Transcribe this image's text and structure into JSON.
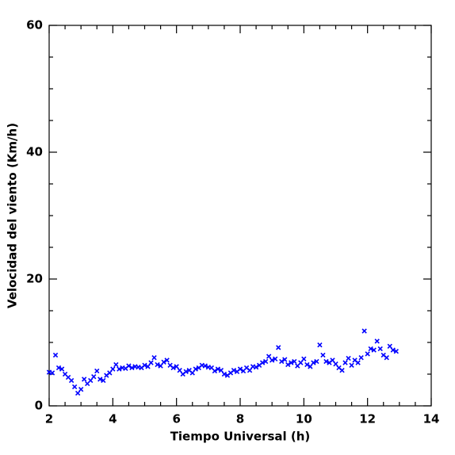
{
  "chart_data": {
    "type": "scatter",
    "x_label": "Tiempo Universal (h)",
    "y_label": "Velocidad del viento (Km/h)",
    "xlim": [
      2,
      14
    ],
    "xticks": [
      2,
      4,
      6,
      8,
      10,
      12,
      14
    ],
    "ylim": [
      0,
      60
    ],
    "yticks": [
      0,
      20,
      40,
      60
    ],
    "grid": false,
    "series": [
      {
        "color": "#0000ff",
        "x": [
          2.0,
          2.1,
          2.2,
          2.3,
          2.4,
          2.5,
          2.6,
          2.7,
          2.8,
          2.9,
          3.0,
          3.1,
          3.2,
          3.3,
          3.4,
          3.5,
          3.6,
          3.7,
          3.8,
          3.9,
          4.0,
          4.1,
          4.2,
          4.3,
          4.4,
          4.5,
          4.6,
          4.7,
          4.8,
          4.9,
          5.0,
          5.1,
          5.2,
          5.3,
          5.4,
          5.5,
          5.6,
          5.7,
          5.8,
          5.9,
          6.0,
          6.1,
          6.2,
          6.3,
          6.4,
          6.5,
          6.6,
          6.7,
          6.8,
          6.9,
          7.0,
          7.1,
          7.2,
          7.3,
          7.4,
          7.5,
          7.6,
          7.7,
          7.8,
          7.9,
          8.0,
          8.1,
          8.2,
          8.3,
          8.4,
          8.5,
          8.6,
          8.7,
          8.8,
          8.9,
          9.0,
          9.1,
          9.2,
          9.3,
          9.4,
          9.5,
          9.6,
          9.7,
          9.8,
          9.9,
          10.0,
          10.1,
          10.2,
          10.3,
          10.4,
          10.5,
          10.6,
          10.7,
          10.8,
          10.9,
          11.0,
          11.1,
          11.2,
          11.3,
          11.4,
          11.5,
          11.6,
          11.7,
          11.8,
          11.9,
          12.0,
          12.1,
          12.2,
          12.3,
          12.4,
          12.5,
          12.6,
          12.7,
          12.8,
          12.9
        ],
        "values": [
          5.3,
          5.2,
          8.0,
          6.0,
          5.8,
          5.0,
          4.5,
          4.0,
          3.0,
          2.0,
          2.6,
          4.2,
          3.5,
          4.0,
          4.6,
          5.5,
          4.2,
          4.0,
          4.8,
          5.2,
          5.8,
          6.5,
          5.8,
          6.0,
          5.9,
          6.3,
          6.0,
          6.2,
          6.1,
          6.0,
          6.4,
          6.2,
          6.8,
          7.6,
          6.5,
          6.3,
          6.9,
          7.2,
          6.4,
          6.0,
          6.2,
          5.6,
          5.0,
          5.4,
          5.6,
          5.2,
          5.8,
          6.0,
          6.4,
          6.3,
          6.1,
          6.0,
          5.5,
          5.8,
          5.6,
          5.0,
          4.8,
          5.2,
          5.6,
          5.4,
          5.8,
          5.5,
          6.0,
          5.6,
          6.2,
          6.1,
          6.4,
          6.8,
          7.0,
          7.8,
          7.2,
          7.4,
          9.2,
          7.0,
          7.3,
          6.5,
          6.8,
          7.0,
          6.3,
          6.8,
          7.4,
          6.5,
          6.2,
          6.8,
          7.0,
          9.6,
          8.0,
          7.0,
          6.8,
          7.2,
          6.6,
          6.0,
          5.6,
          6.8,
          7.5,
          6.4,
          7.2,
          6.8,
          7.6,
          11.8,
          8.2,
          9.0,
          8.8,
          10.2,
          9.0,
          8.0,
          7.6,
          9.4,
          8.8,
          8.6
        ]
      }
    ]
  }
}
